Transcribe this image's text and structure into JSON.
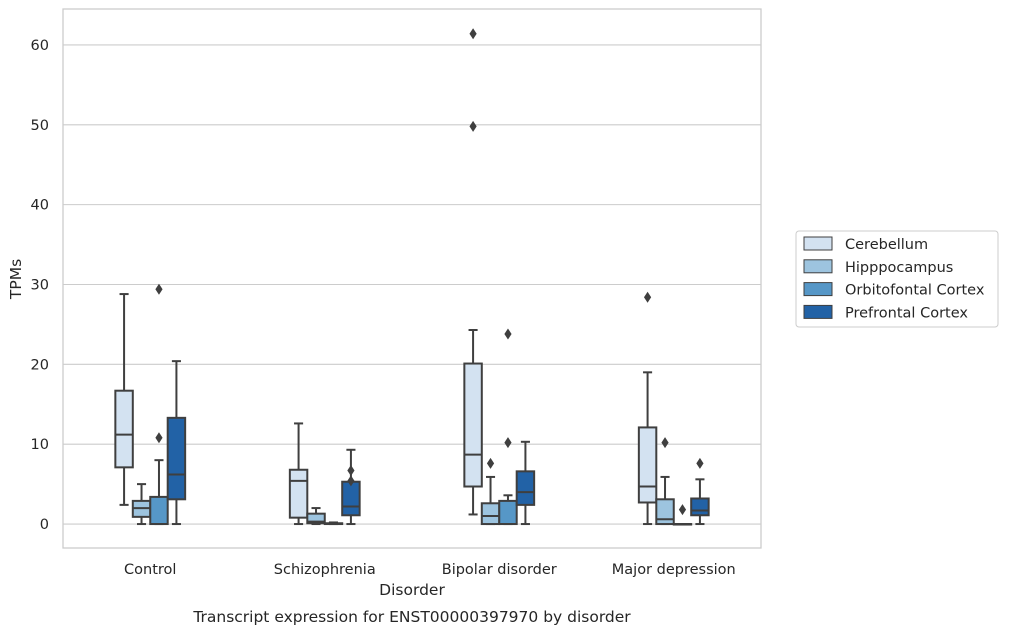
{
  "chart_data": {
    "type": "box",
    "caption": "Transcript expression for ENST00000397970 by disorder",
    "xlabel": "Disorder",
    "ylabel": "TPMs",
    "ylim": [
      -3,
      64.5
    ],
    "yticks": [
      0,
      10,
      20,
      30,
      40,
      50,
      60
    ],
    "grid": "horizontal",
    "legend_position": "right",
    "categories": [
      "Control",
      "Schizophrenia",
      "Bipolar disorder",
      "Major depression"
    ],
    "series": [
      {
        "name": "Cerebellum",
        "color": "#d3e2f1",
        "boxes": [
          {
            "whislo": 2.4,
            "q1": 7.1,
            "med": 11.2,
            "q3": 16.7,
            "whishi": 28.8,
            "fliers": []
          },
          {
            "whislo": 0.0,
            "q1": 0.8,
            "med": 5.4,
            "q3": 6.8,
            "whishi": 12.6,
            "fliers": []
          },
          {
            "whislo": 1.2,
            "q1": 4.7,
            "med": 8.7,
            "q3": 20.1,
            "whishi": 24.3,
            "fliers": [
              49.8,
              61.4
            ]
          },
          {
            "whislo": 0.0,
            "q1": 2.7,
            "med": 4.7,
            "q3": 12.1,
            "whishi": 19.0,
            "fliers": [
              28.4
            ]
          }
        ]
      },
      {
        "name": "Hipppocampus",
        "color": "#9dc4df",
        "boxes": [
          {
            "whislo": 0.0,
            "q1": 0.9,
            "med": 2.0,
            "q3": 2.9,
            "whishi": 5.0,
            "fliers": []
          },
          {
            "whislo": 0.0,
            "q1": 0.1,
            "med": 0.3,
            "q3": 1.3,
            "whishi": 2.0,
            "fliers": []
          },
          {
            "whislo": 0.0,
            "q1": 0.0,
            "med": 1.0,
            "q3": 2.6,
            "whishi": 5.9,
            "fliers": [
              7.6
            ]
          },
          {
            "whislo": 0.0,
            "q1": 0.0,
            "med": 0.6,
            "q3": 3.1,
            "whishi": 5.9,
            "fliers": [
              10.2
            ]
          }
        ]
      },
      {
        "name": "Orbitofontal Cortex",
        "color": "#5697c7",
        "boxes": [
          {
            "whislo": 0.0,
            "q1": 0.0,
            "med": 0.0,
            "q3": 3.4,
            "whishi": 8.0,
            "fliers": [
              10.8,
              29.4
            ]
          },
          {
            "whislo": 0.0,
            "q1": 0.0,
            "med": 0.0,
            "q3": 0.1,
            "whishi": 0.2,
            "fliers": []
          },
          {
            "whislo": 0.0,
            "q1": 0.0,
            "med": 0.0,
            "q3": 2.9,
            "whishi": 3.6,
            "fliers": [
              10.2,
              23.8
            ]
          },
          {
            "whislo": 0.0,
            "q1": 0.0,
            "med": 0.0,
            "q3": 0.0,
            "whishi": 0.0,
            "fliers": [
              1.8
            ]
          }
        ]
      },
      {
        "name": "Prefrontal Cortex",
        "color": "#2262a6",
        "boxes": [
          {
            "whislo": 0.0,
            "q1": 3.1,
            "med": 6.2,
            "q3": 13.3,
            "whishi": 20.4,
            "fliers": []
          },
          {
            "whislo": 0.0,
            "q1": 1.1,
            "med": 2.2,
            "q3": 5.3,
            "whishi": 9.3,
            "fliers": [
              5.4,
              6.7
            ]
          },
          {
            "whislo": 0.0,
            "q1": 2.4,
            "med": 4.0,
            "q3": 6.6,
            "whishi": 10.3,
            "fliers": []
          },
          {
            "whislo": 0.0,
            "q1": 1.1,
            "med": 1.7,
            "q3": 3.2,
            "whishi": 5.6,
            "fliers": [
              7.6
            ]
          }
        ]
      }
    ]
  }
}
